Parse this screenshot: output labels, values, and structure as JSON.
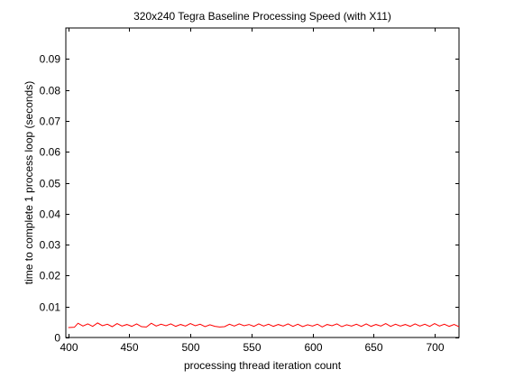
{
  "chart_data": {
    "type": "line",
    "title": "320x240 Tegra Baseline Processing Speed (with X11)",
    "xlabel": "processing thread iteration count",
    "ylabel": "time to complete 1 process loop (seconds)",
    "xlim": [
      398,
      720
    ],
    "ylim": [
      0,
      0.1
    ],
    "xticks": [
      400,
      450,
      500,
      550,
      600,
      650,
      700
    ],
    "yticks": [
      0,
      0.01,
      0.02,
      0.03,
      0.04,
      0.05,
      0.06,
      0.07,
      0.08,
      0.09
    ],
    "ytick_labels": [
      "0",
      "0.01",
      "0.02",
      "0.03",
      "0.04",
      "0.05",
      "0.06",
      "0.07",
      "0.08",
      "0.09"
    ],
    "grid": false,
    "series": [
      {
        "color": "#ff0000",
        "x": [
          400,
          405,
          408,
          412,
          416,
          420,
          424,
          428,
          432,
          436,
          440,
          444,
          448,
          452,
          456,
          460,
          464,
          468,
          472,
          476,
          480,
          484,
          488,
          492,
          496,
          500,
          504,
          508,
          512,
          516,
          520,
          524,
          528,
          532,
          536,
          540,
          544,
          548,
          552,
          556,
          560,
          564,
          568,
          572,
          576,
          580,
          584,
          588,
          592,
          596,
          600,
          604,
          608,
          612,
          616,
          620,
          624,
          628,
          632,
          636,
          640,
          644,
          648,
          652,
          656,
          660,
          664,
          668,
          672,
          676,
          680,
          684,
          688,
          692,
          696,
          700,
          704,
          708,
          712,
          716,
          720
        ],
        "y": [
          0.0032,
          0.0033,
          0.0046,
          0.0037,
          0.0044,
          0.0036,
          0.0047,
          0.0038,
          0.0043,
          0.0035,
          0.0045,
          0.0037,
          0.0042,
          0.0036,
          0.0044,
          0.0035,
          0.0034,
          0.0046,
          0.0037,
          0.0043,
          0.0038,
          0.0044,
          0.0036,
          0.0042,
          0.0037,
          0.0045,
          0.0038,
          0.0043,
          0.0035,
          0.0041,
          0.0036,
          0.0034,
          0.0035,
          0.0043,
          0.0037,
          0.0044,
          0.0038,
          0.0042,
          0.0036,
          0.0044,
          0.0037,
          0.0043,
          0.0036,
          0.0042,
          0.0037,
          0.0044,
          0.0036,
          0.0043,
          0.0035,
          0.0041,
          0.0037,
          0.0043,
          0.0034,
          0.0042,
          0.0038,
          0.0044,
          0.0035,
          0.0041,
          0.0037,
          0.0043,
          0.0036,
          0.0044,
          0.0036,
          0.0042,
          0.0037,
          0.0045,
          0.0036,
          0.0043,
          0.0037,
          0.0042,
          0.0036,
          0.0044,
          0.0037,
          0.0043,
          0.0036,
          0.0045,
          0.0037,
          0.0043,
          0.0036,
          0.0042,
          0.0035
        ]
      }
    ]
  }
}
